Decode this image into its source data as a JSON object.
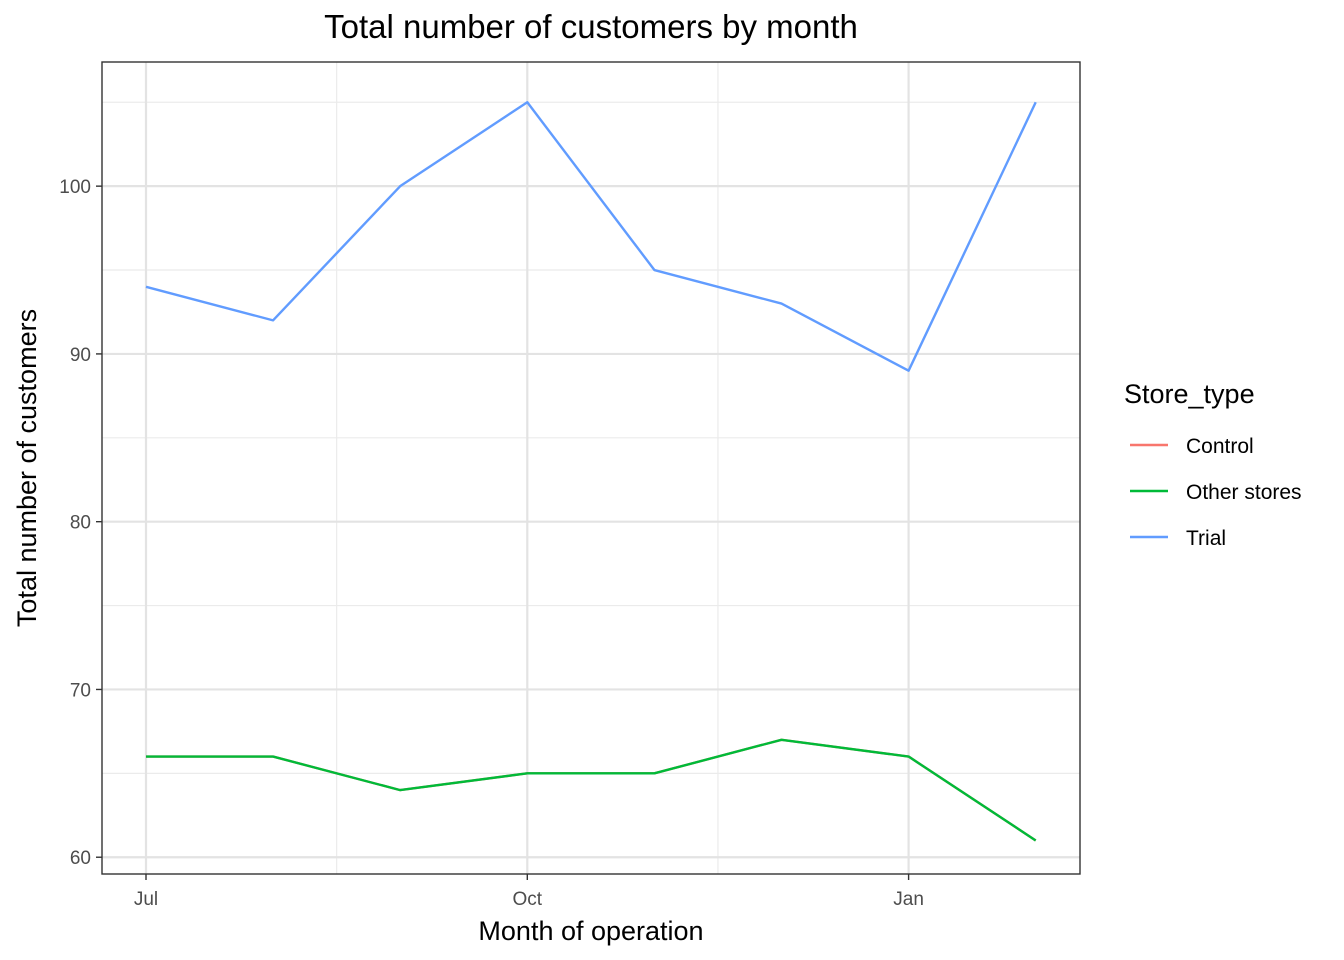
{
  "chart_data": {
    "type": "line",
    "title": "Total number of customers by month",
    "xlabel": "Month of operation",
    "ylabel": "Total number of customers",
    "x": [
      "2018-07",
      "2018-08",
      "2018-09",
      "2018-10",
      "2018-11",
      "2018-12",
      "2019-01",
      "2019-02"
    ],
    "x_ticks": [
      {
        "x": "2018-07",
        "label": "Jul"
      },
      {
        "x": "2018-10",
        "label": "Oct"
      },
      {
        "x": "2019-01",
        "label": "Jan"
      }
    ],
    "y_ticks": [
      60,
      70,
      80,
      90,
      100
    ],
    "ylim": [
      59,
      107.4
    ],
    "grid": true,
    "legend": {
      "title": "Store_type",
      "position": "right"
    },
    "series": [
      {
        "name": "Control",
        "color": "#F8766D",
        "values": [
          66,
          66,
          64,
          65,
          65,
          67,
          66,
          61
        ]
      },
      {
        "name": "Other stores",
        "color": "#00BA38",
        "values": [
          66,
          66,
          64,
          65,
          65,
          67,
          66,
          61
        ]
      },
      {
        "name": "Trial",
        "color": "#619CFF",
        "values": [
          94,
          92,
          100,
          105,
          95,
          93,
          89,
          105
        ]
      }
    ]
  }
}
